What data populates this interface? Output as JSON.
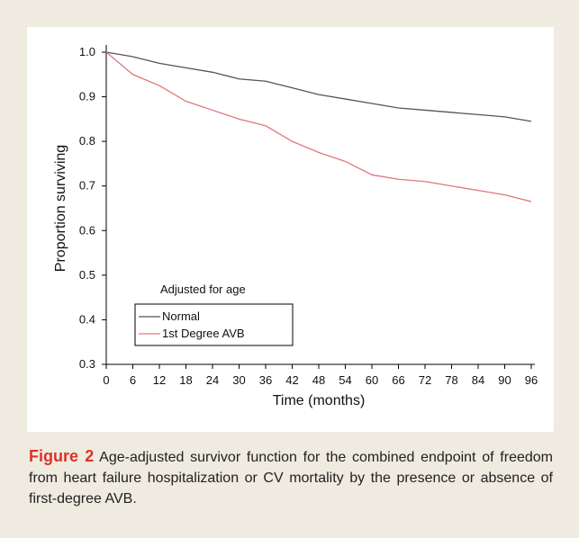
{
  "chart_data": {
    "type": "line",
    "x_label": "Time (months)",
    "y_label": "Proportion surviving",
    "x": [
      0,
      6,
      12,
      18,
      24,
      30,
      36,
      42,
      48,
      54,
      60,
      66,
      72,
      78,
      84,
      90,
      96
    ],
    "series": [
      {
        "name": "Normal",
        "color": "#555555",
        "values": [
          1.0,
          0.99,
          0.975,
          0.965,
          0.955,
          0.94,
          0.935,
          0.92,
          0.905,
          0.895,
          0.885,
          0.875,
          0.87,
          0.865,
          0.86,
          0.855,
          0.845
        ]
      },
      {
        "name": "1st Degree AVB",
        "color": "#e0777a",
        "values": [
          1.0,
          0.95,
          0.925,
          0.89,
          0.87,
          0.85,
          0.835,
          0.8,
          0.775,
          0.755,
          0.725,
          0.715,
          0.71,
          0.7,
          0.69,
          0.68,
          0.665
        ]
      }
    ],
    "legend_title": "Adjusted for age",
    "legend": "lower-left",
    "xlim": [
      0,
      96
    ],
    "xticks": [
      0,
      6,
      12,
      18,
      24,
      30,
      36,
      42,
      48,
      54,
      60,
      66,
      72,
      78,
      84,
      90,
      96
    ],
    "ylim": [
      0.3,
      1
    ],
    "yticks": [
      0.3,
      0.4,
      0.5,
      0.6,
      0.7,
      0.8,
      0.9,
      {
        "value": 1,
        "label": "1.0"
      }
    ]
  },
  "caption": {
    "label": "Figure 2",
    "text": "Age-adjusted survivor function for the combined endpoint of freedom from heart failure hospitalization or CV mortality by the presence or absence of first-degree AVB."
  }
}
